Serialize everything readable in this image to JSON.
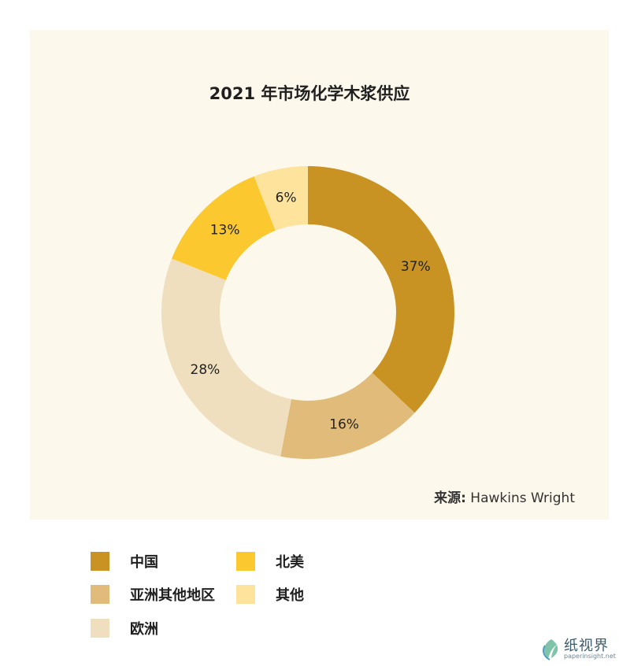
{
  "chart_data": {
    "type": "pie",
    "title": "2021 年市场化学木浆供应",
    "categories": [
      "中国",
      "亚洲其他地区",
      "欧洲",
      "北美",
      "其他"
    ],
    "values": [
      37,
      16,
      28,
      13,
      6
    ],
    "value_labels": [
      "37%",
      "16%",
      "28%",
      "13%",
      "6%"
    ],
    "colors": [
      "#c99324",
      "#e0bb79",
      "#efdfbe",
      "#fbc82f",
      "#fde39c"
    ],
    "style": "donut",
    "legend_position": "bottom"
  },
  "source": {
    "label": "来源",
    "colon": ":",
    "value": "Hawkins Wright"
  },
  "watermark": {
    "text": "纸视界",
    "subtext": "paperinsight.net"
  }
}
